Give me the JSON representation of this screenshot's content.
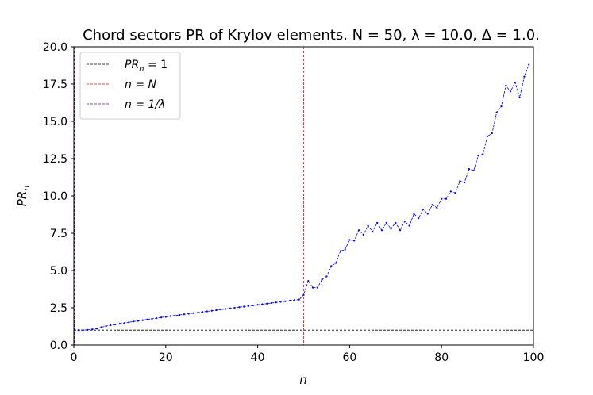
{
  "chart_data": {
    "type": "line",
    "title": "Chord sectors PR of Krylov elements. N = 50, λ = 10.0, Δ = 1.0.",
    "xlabel": "n",
    "ylabel": "PR_n",
    "xlim": [
      0,
      100
    ],
    "ylim": [
      0,
      20
    ],
    "xticks": [
      "0",
      "20",
      "40",
      "60",
      "80",
      "100"
    ],
    "yticks": [
      "0.0",
      "2.5",
      "5.0",
      "7.5",
      "10.0",
      "12.5",
      "15.0",
      "17.5",
      "20.0"
    ],
    "grid": false,
    "legend_position": "top-left",
    "series": [
      {
        "name": "PR_n",
        "color": "#0000ff",
        "style": "dashed-with-dots",
        "x": [
          0,
          1,
          2,
          3,
          4,
          5,
          6,
          7,
          8,
          9,
          10,
          11,
          12,
          13,
          14,
          15,
          16,
          17,
          18,
          19,
          20,
          21,
          22,
          23,
          24,
          25,
          26,
          27,
          28,
          29,
          30,
          31,
          32,
          33,
          34,
          35,
          36,
          37,
          38,
          39,
          40,
          41,
          42,
          43,
          44,
          45,
          46,
          47,
          48,
          49,
          50,
          51,
          52,
          53,
          54,
          55,
          56,
          57,
          58,
          59,
          60,
          61,
          62,
          63,
          64,
          65,
          66,
          67,
          68,
          69,
          70,
          71,
          72,
          73,
          74,
          75,
          76,
          77,
          78,
          79,
          80,
          81,
          82,
          83,
          84,
          85,
          86,
          87,
          88,
          89,
          90,
          91,
          92,
          93,
          94,
          95,
          96,
          97,
          98,
          99
        ],
        "y": [
          1.0,
          1.0,
          1.0,
          1.02,
          1.05,
          1.1,
          1.2,
          1.27,
          1.33,
          1.38,
          1.43,
          1.48,
          1.53,
          1.58,
          1.62,
          1.67,
          1.72,
          1.76,
          1.8,
          1.85,
          1.89,
          1.94,
          1.98,
          2.02,
          2.06,
          2.1,
          2.14,
          2.18,
          2.22,
          2.26,
          2.3,
          2.34,
          2.38,
          2.42,
          2.46,
          2.5,
          2.54,
          2.58,
          2.62,
          2.66,
          2.7,
          2.74,
          2.78,
          2.82,
          2.86,
          2.9,
          2.94,
          2.98,
          3.02,
          3.05,
          3.36,
          4.3,
          3.85,
          3.85,
          4.4,
          4.6,
          5.3,
          5.5,
          6.3,
          6.4,
          7.05,
          7.0,
          7.7,
          7.4,
          8.0,
          7.6,
          8.2,
          7.7,
          8.2,
          7.8,
          8.2,
          7.7,
          8.3,
          8.0,
          8.8,
          8.5,
          9.1,
          8.8,
          9.4,
          9.2,
          9.8,
          9.8,
          10.3,
          10.2,
          11.0,
          10.9,
          11.8,
          11.7,
          12.7,
          12.8,
          14.0,
          14.2,
          15.6,
          16.0,
          17.4,
          17.0,
          17.6,
          16.6,
          18.0,
          18.8
        ]
      }
    ],
    "hlines": [
      {
        "name": "PR_n = 1",
        "y": 1,
        "color": "#000000",
        "style": "dashed"
      }
    ],
    "vlines": [
      {
        "name": "n = N",
        "x": 50,
        "color": "#ff0000",
        "style": "dashed"
      },
      {
        "name": "n = 1/λ",
        "x": 0.1,
        "color": "#800080",
        "style": "dashed"
      }
    ],
    "legend": [
      {
        "label_base": "PR",
        "label_sub": "n",
        "label_rest": " = 1",
        "color": "#000000"
      },
      {
        "label_base": "n = N",
        "label_sub": "",
        "label_rest": "",
        "color": "#ff0000"
      },
      {
        "label_base": "n = 1/λ",
        "label_sub": "",
        "label_rest": "",
        "color": "#800080"
      }
    ]
  }
}
